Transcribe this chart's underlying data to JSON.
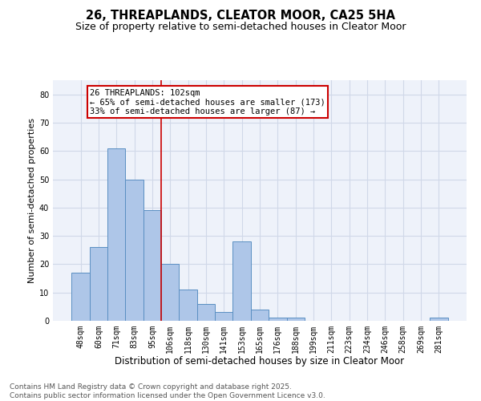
{
  "title": "26, THREAPLANDS, CLEATOR MOOR, CA25 5HA",
  "subtitle": "Size of property relative to semi-detached houses in Cleator Moor",
  "xlabel": "Distribution of semi-detached houses by size in Cleator Moor",
  "ylabel": "Number of semi-detached properties",
  "categories": [
    "48sqm",
    "60sqm",
    "71sqm",
    "83sqm",
    "95sqm",
    "106sqm",
    "118sqm",
    "130sqm",
    "141sqm",
    "153sqm",
    "165sqm",
    "176sqm",
    "188sqm",
    "199sqm",
    "211sqm",
    "223sqm",
    "234sqm",
    "246sqm",
    "258sqm",
    "269sqm",
    "281sqm"
  ],
  "values": [
    17,
    26,
    61,
    50,
    39,
    20,
    11,
    6,
    3,
    28,
    4,
    1,
    1,
    0,
    0,
    0,
    0,
    0,
    0,
    0,
    1
  ],
  "bar_color": "#aec6e8",
  "bar_edge_color": "#5a8fc2",
  "vline_x": 4.5,
  "annotation_text": "26 THREAPLANDS: 102sqm\n← 65% of semi-detached houses are smaller (173)\n33% of semi-detached houses are larger (87) →",
  "annotation_box_color": "#ffffff",
  "annotation_box_edge": "#cc0000",
  "vline_color": "#cc0000",
  "ylim": [
    0,
    85
  ],
  "yticks": [
    0,
    10,
    20,
    30,
    40,
    50,
    60,
    70,
    80
  ],
  "grid_color": "#d0d8e8",
  "bg_color": "#eef2fa",
  "footer_text": "Contains HM Land Registry data © Crown copyright and database right 2025.\nContains public sector information licensed under the Open Government Licence v3.0.",
  "title_fontsize": 10.5,
  "subtitle_fontsize": 9,
  "xlabel_fontsize": 8.5,
  "ylabel_fontsize": 8,
  "tick_fontsize": 7,
  "annotation_fontsize": 7.5,
  "footer_fontsize": 6.5
}
